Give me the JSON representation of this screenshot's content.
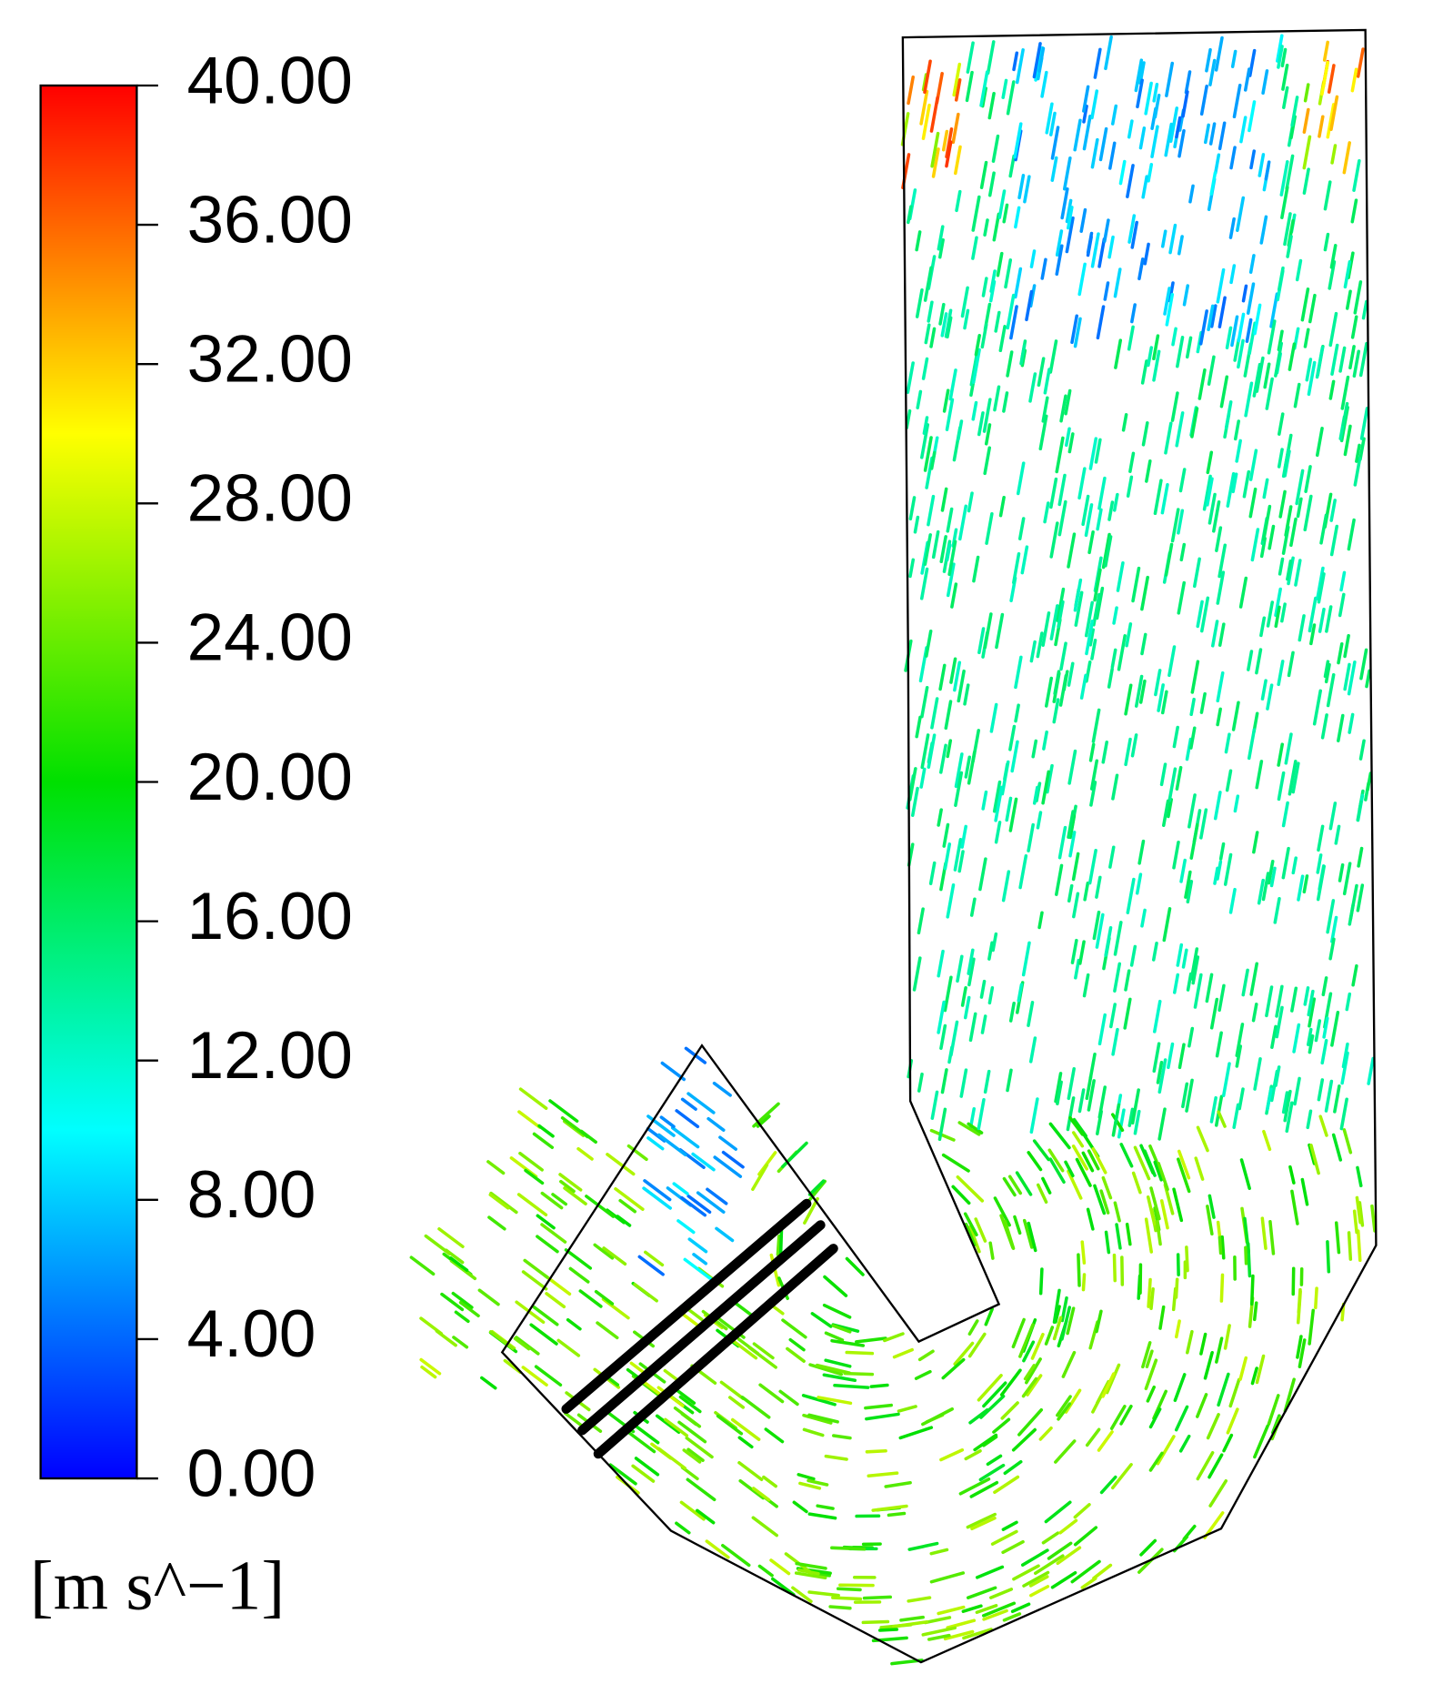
{
  "legend": {
    "ticks": [
      {
        "value": 40,
        "label": "40.00"
      },
      {
        "value": 36,
        "label": "36.00"
      },
      {
        "value": 32,
        "label": "32.00"
      },
      {
        "value": 28,
        "label": "28.00"
      },
      {
        "value": 24,
        "label": "24.00"
      },
      {
        "value": 20,
        "label": "20.00"
      },
      {
        "value": 16,
        "label": "16.00"
      },
      {
        "value": 12,
        "label": "12.00"
      },
      {
        "value": 8,
        "label": "8.00"
      },
      {
        "value": 4,
        "label": "4.00"
      },
      {
        "value": 0,
        "label": "0.00"
      }
    ],
    "range": [
      0,
      40
    ],
    "unit": "[m s^−1]",
    "colormap": [
      "#0000ff",
      "#00ffff",
      "#00e000",
      "#ffff00",
      "#ff0000"
    ]
  }
}
